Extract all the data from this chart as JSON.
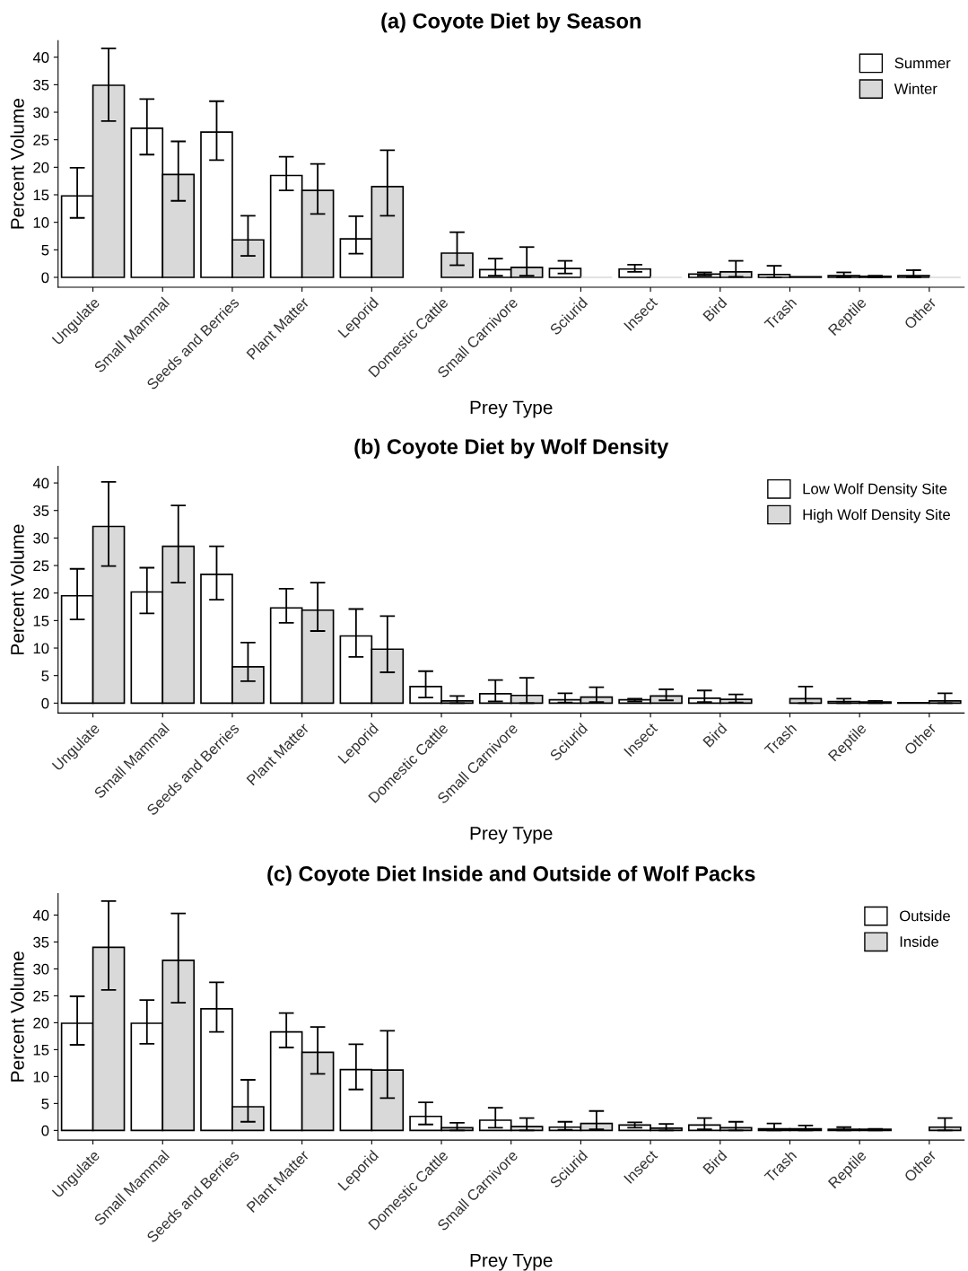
{
  "chart_data": [
    {
      "type": "bar",
      "title": "(a) Coyote Diet by Season",
      "xlabel": "Prey Type",
      "ylabel": "Percent Volume",
      "categories": [
        "Ungulate",
        "Small Mammal",
        "Seeds and Berries",
        "Plant Matter",
        "Leporid",
        "Domestic Cattle",
        "Small Carnivore",
        "Sciurid",
        "Insect",
        "Bird",
        "Trash",
        "Reptile",
        "Other"
      ],
      "ylim": [
        -1.8,
        43
      ],
      "yticks": [
        0,
        5,
        10,
        15,
        20,
        25,
        30,
        35,
        40
      ],
      "grid": false,
      "legend": "top right",
      "series": [
        {
          "name": "Summer",
          "color": "#ffffff",
          "values": [
            14.8,
            27.1,
            26.4,
            18.5,
            7.0,
            0,
            1.4,
            1.6,
            1.5,
            0.6,
            0.5,
            0.3,
            0.3
          ],
          "errors": [
            [
              10.8,
              19.9
            ],
            [
              22.3,
              32.4
            ],
            [
              21.3,
              32.0
            ],
            [
              15.8,
              21.9
            ],
            [
              4.3,
              11.1
            ],
            null,
            [
              0.3,
              3.4
            ],
            [
              0.7,
              3.0
            ],
            [
              1.0,
              2.3
            ],
            [
              0.3,
              0.9
            ],
            [
              0,
              2.1
            ],
            [
              0,
              0.9
            ],
            [
              0,
              1.3
            ]
          ]
        },
        {
          "name": "Winter",
          "color": "#d9d9d9",
          "values": [
            34.9,
            18.7,
            6.8,
            15.8,
            16.5,
            4.4,
            1.8,
            0,
            0,
            1.0,
            0.1,
            0.2,
            0
          ],
          "errors": [
            [
              28.4,
              41.6
            ],
            [
              13.9,
              24.7
            ],
            [
              3.9,
              11.2
            ],
            [
              11.5,
              20.6
            ],
            [
              11.2,
              23.1
            ],
            [
              2.2,
              8.2
            ],
            [
              0.3,
              5.5
            ],
            null,
            null,
            [
              0.1,
              3.0
            ],
            null,
            [
              0,
              0.3
            ],
            null
          ]
        }
      ]
    },
    {
      "type": "bar",
      "title": "(b) Coyote Diet by Wolf Density",
      "xlabel": "Prey Type",
      "ylabel": "Percent Volume",
      "categories": [
        "Ungulate",
        "Small Mammal",
        "Seeds and Berries",
        "Plant Matter",
        "Leporid",
        "Domestic Cattle",
        "Small Carnivore",
        "Sciurid",
        "Insect",
        "Bird",
        "Trash",
        "Reptile",
        "Other"
      ],
      "ylim": [
        -1.8,
        43
      ],
      "yticks": [
        0,
        5,
        10,
        15,
        20,
        25,
        30,
        35,
        40
      ],
      "grid": false,
      "legend": "top right",
      "series": [
        {
          "name": "Low Wolf Density Site",
          "color": "#ffffff",
          "values": [
            19.5,
            20.2,
            23.4,
            17.3,
            12.2,
            3.0,
            1.7,
            0.6,
            0.6,
            0.9,
            0,
            0.3,
            0.1
          ],
          "errors": [
            [
              15.2,
              24.4
            ],
            [
              16.3,
              24.6
            ],
            [
              18.8,
              28.5
            ],
            [
              14.6,
              20.8
            ],
            [
              8.4,
              17.1
            ],
            [
              1.0,
              5.8
            ],
            [
              0.3,
              4.2
            ],
            [
              0.1,
              1.8
            ],
            [
              0.3,
              0.8
            ],
            [
              0.2,
              2.3
            ],
            null,
            [
              0,
              0.8
            ],
            null
          ]
        },
        {
          "name": "High Wolf Density Site",
          "color": "#d9d9d9",
          "values": [
            32.1,
            28.5,
            6.6,
            16.9,
            9.8,
            0.4,
            1.4,
            1.1,
            1.3,
            0.7,
            0.8,
            0.2,
            0.4
          ],
          "errors": [
            [
              24.9,
              40.2
            ],
            [
              21.9,
              35.9
            ],
            [
              4.0,
              11.0
            ],
            [
              13.1,
              21.9
            ],
            [
              5.6,
              15.8
            ],
            [
              0,
              1.3
            ],
            [
              0,
              4.6
            ],
            [
              0.2,
              2.9
            ],
            [
              0.5,
              2.5
            ],
            [
              0.1,
              1.6
            ],
            [
              0,
              3.0
            ],
            [
              0,
              0.4
            ],
            [
              0,
              1.8
            ]
          ]
        }
      ]
    },
    {
      "type": "bar",
      "title": "(c) Coyote Diet Inside and Outside of Wolf Packs",
      "xlabel": "Prey Type",
      "ylabel": "Percent Volume",
      "categories": [
        "Ungulate",
        "Small Mammal",
        "Seeds and Berries",
        "Plant Matter",
        "Leporid",
        "Domestic Cattle",
        "Small Carnivore",
        "Sciurid",
        "Insect",
        "Bird",
        "Trash",
        "Reptile",
        "Other"
      ],
      "ylim": [
        -1.8,
        44
      ],
      "yticks": [
        0,
        5,
        10,
        15,
        20,
        25,
        30,
        35,
        40
      ],
      "grid": false,
      "legend": "top right",
      "series": [
        {
          "name": "Outside",
          "color": "#ffffff",
          "values": [
            19.9,
            19.9,
            22.6,
            18.3,
            11.3,
            2.6,
            1.9,
            0.6,
            1.0,
            1.0,
            0.3,
            0.2,
            0
          ],
          "errors": [
            [
              15.9,
              24.9
            ],
            [
              16.1,
              24.2
            ],
            [
              18.3,
              27.5
            ],
            [
              15.4,
              21.8
            ],
            [
              7.6,
              16.0
            ],
            [
              1.1,
              5.2
            ],
            [
              0.5,
              4.2
            ],
            [
              0.1,
              1.6
            ],
            [
              0.5,
              1.5
            ],
            [
              0.2,
              2.3
            ],
            [
              0,
              1.3
            ],
            [
              0,
              0.6
            ],
            null
          ]
        },
        {
          "name": "Inside",
          "color": "#d9d9d9",
          "values": [
            34.0,
            31.6,
            4.4,
            14.5,
            11.2,
            0.5,
            0.7,
            1.3,
            0.4,
            0.5,
            0.3,
            0.2,
            0.6
          ],
          "errors": [
            [
              26.1,
              42.6
            ],
            [
              23.7,
              40.3
            ],
            [
              1.6,
              9.4
            ],
            [
              10.5,
              19.2
            ],
            [
              6.0,
              18.5
            ],
            [
              0,
              1.4
            ],
            [
              0,
              2.3
            ],
            [
              0.2,
              3.6
            ],
            [
              0,
              1.2
            ],
            [
              0,
              1.6
            ],
            [
              0,
              0.9
            ],
            [
              0,
              0.3
            ],
            [
              0,
              2.3
            ]
          ]
        }
      ]
    }
  ]
}
